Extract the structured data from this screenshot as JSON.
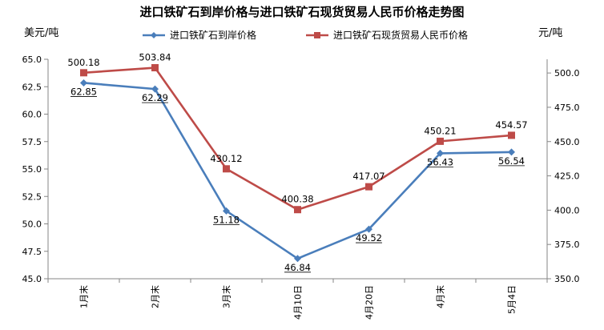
{
  "chart_data": {
    "type": "line",
    "title": "进口铁矿石到岸价格与进口铁矿石现货贸易人民币价格走势图",
    "left_unit": "美元/吨",
    "right_unit": "元/吨",
    "categories": [
      "1月末",
      "2月末",
      "3月末",
      "4月10日",
      "4月20日",
      "4月末",
      "5月4日"
    ],
    "y_left": {
      "min": 45.0,
      "max": 65.0,
      "step": 2.5,
      "ticks": [
        "45.0",
        "47.5",
        "50.0",
        "52.5",
        "55.0",
        "57.5",
        "60.0",
        "62.5",
        "65.0"
      ]
    },
    "y_right": {
      "min": 350.0,
      "max": 510.0,
      "step": 25,
      "ticks": [
        "350.0",
        "375.0",
        "400.0",
        "425.0",
        "450.0",
        "475.0",
        "500.0"
      ]
    },
    "grid": false,
    "legend_position": "top",
    "series": [
      {
        "name": "进口铁矿石到岸价格",
        "axis": "left",
        "color": "#4A7EBB",
        "marker": "diamond",
        "values": [
          62.85,
          62.29,
          51.18,
          46.84,
          49.52,
          56.43,
          56.54
        ],
        "labels": [
          "62.85",
          "62.29",
          "51.18",
          "46.84",
          "49.52",
          "56.43",
          "56.54"
        ]
      },
      {
        "name": "进口铁矿石现货贸易人民币价格",
        "axis": "right",
        "color": "#BE4B48",
        "marker": "square",
        "values": [
          500.18,
          503.84,
          430.12,
          400.38,
          417.07,
          450.21,
          454.57
        ],
        "labels": [
          "500.18",
          "503.84",
          "430.12",
          "400.38",
          "417.07",
          "450.21",
          "454.57"
        ]
      }
    ]
  }
}
